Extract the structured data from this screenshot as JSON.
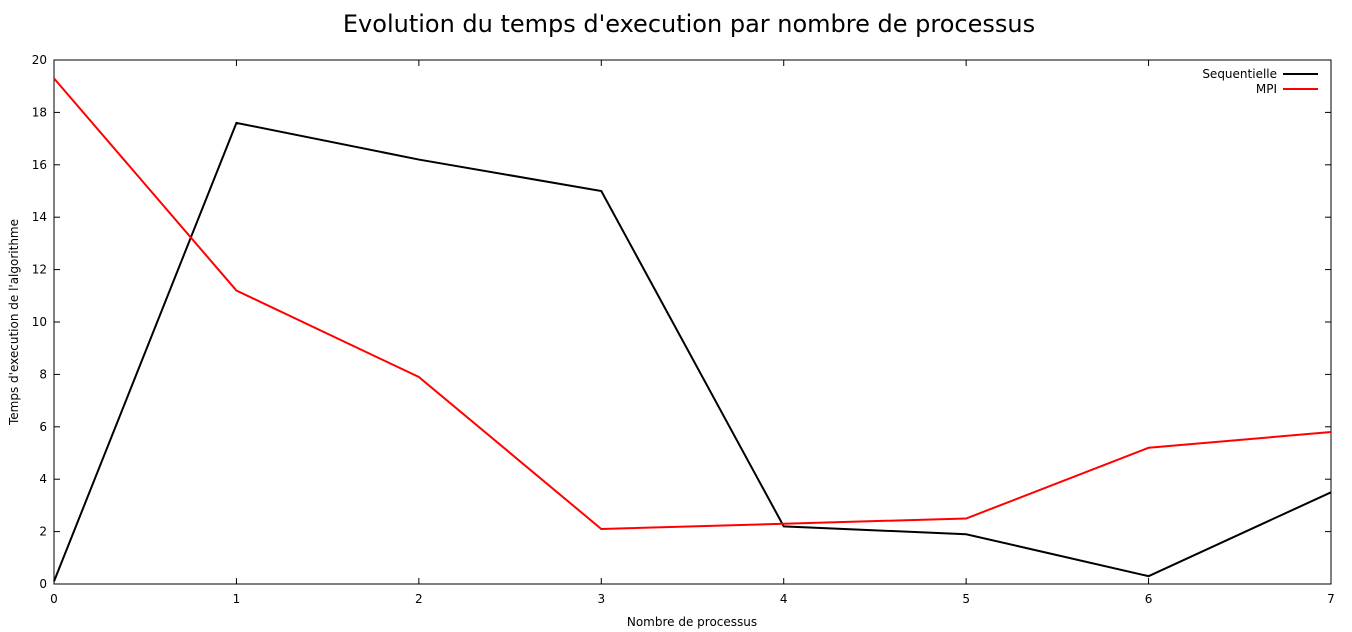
{
  "chart_data": {
    "type": "line",
    "title": "Evolution du temps d'execution par nombre de processus",
    "xlabel": "Nombre de processus",
    "ylabel": "Temps d'execution de l'algorithme",
    "xlim": [
      0,
      7
    ],
    "ylim": [
      0,
      20
    ],
    "x_ticks": [
      0,
      1,
      2,
      3,
      4,
      5,
      6,
      7
    ],
    "y_ticks": [
      0,
      2,
      4,
      6,
      8,
      10,
      12,
      14,
      16,
      18,
      20
    ],
    "x": [
      0,
      1,
      2,
      3,
      4,
      5,
      6,
      7
    ],
    "grid": false,
    "legend_position": "top-right",
    "series": [
      {
        "name": "Sequentielle",
        "color": "#000000",
        "values": [
          0.1,
          17.6,
          16.2,
          15.0,
          2.2,
          1.9,
          0.3,
          3.5
        ]
      },
      {
        "name": "MPI",
        "color": "#ff0000",
        "values": [
          19.3,
          11.2,
          7.9,
          2.1,
          2.3,
          2.5,
          5.2,
          5.8
        ]
      }
    ]
  }
}
